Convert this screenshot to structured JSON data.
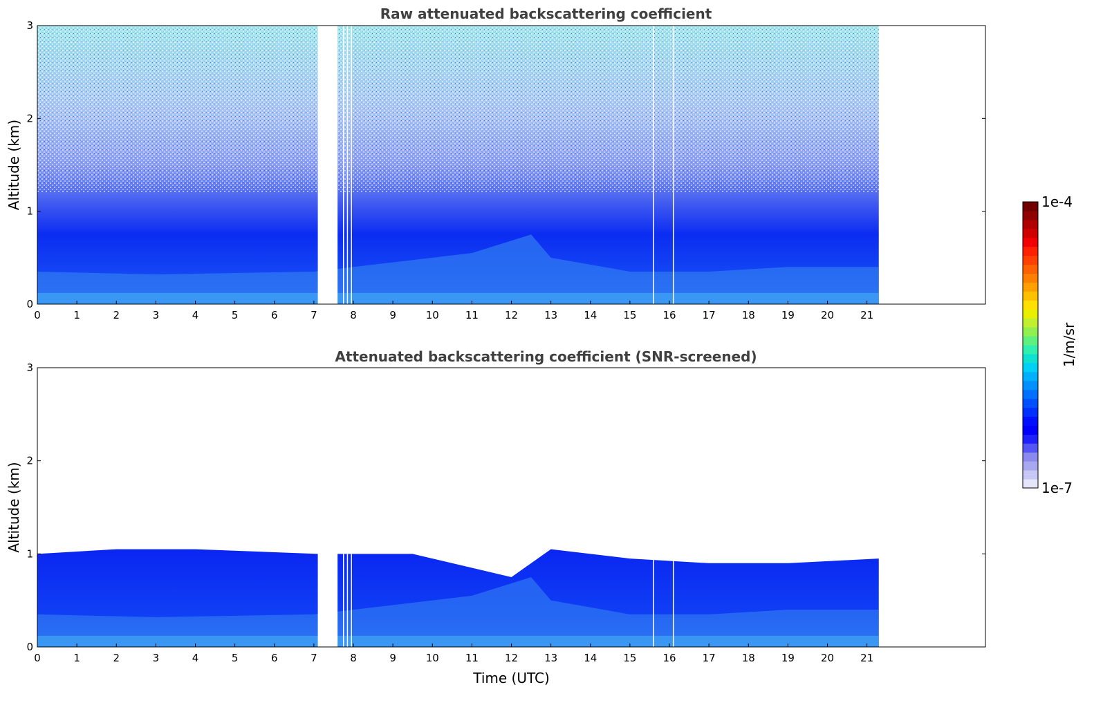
{
  "chart_data": [
    {
      "type": "heatmap",
      "title": "Raw attenuated backscattering coefficient",
      "xlabel": "",
      "ylabel": "Altitude (km)",
      "xlim": [
        0,
        24
      ],
      "ylim": [
        0,
        3
      ],
      "x_ticks": [
        "0",
        "1",
        "2",
        "3",
        "4",
        "5",
        "6",
        "7",
        "8",
        "9",
        "10",
        "11",
        "12",
        "13",
        "14",
        "15",
        "16",
        "17",
        "18",
        "19",
        "20",
        "21"
      ],
      "y_ticks": [
        "0",
        "1",
        "2",
        "3"
      ],
      "data_extent_hours": [
        0,
        21.3
      ],
      "data_gap_hours": [
        7.1,
        7.6
      ],
      "dropout_lines_hours": [
        7.75,
        7.85,
        7.95,
        15.6,
        16.1
      ],
      "boundary_layer_top_km": [
        {
          "t": 0,
          "h": 0.35
        },
        {
          "t": 3,
          "h": 0.32
        },
        {
          "t": 7,
          "h": 0.35
        },
        {
          "t": 11,
          "h": 0.55
        },
        {
          "t": 12.5,
          "h": 0.75
        },
        {
          "t": 13,
          "h": 0.5
        },
        {
          "t": 15,
          "h": 0.35
        },
        {
          "t": 17,
          "h": 0.35
        },
        {
          "t": 19,
          "h": 0.4
        },
        {
          "t": 21.3,
          "h": 0.4
        }
      ]
    },
    {
      "type": "heatmap",
      "title": "Attenuated backscattering coefficient (SNR-screened)",
      "xlabel": "Time (UTC)",
      "ylabel": "Altitude (km)",
      "xlim": [
        0,
        24
      ],
      "ylim": [
        0,
        3
      ],
      "x_ticks": [
        "0",
        "1",
        "2",
        "3",
        "4",
        "5",
        "6",
        "7",
        "8",
        "9",
        "10",
        "11",
        "12",
        "13",
        "14",
        "15",
        "16",
        "17",
        "18",
        "19",
        "20",
        "21"
      ],
      "y_ticks": [
        "0",
        "1",
        "2",
        "3"
      ],
      "data_extent_hours": [
        0,
        21.3
      ],
      "data_gap_hours": [
        7.1,
        7.6
      ],
      "screened_top_km": [
        {
          "t": 0,
          "h": 1.0
        },
        {
          "t": 2,
          "h": 1.05
        },
        {
          "t": 4,
          "h": 1.05
        },
        {
          "t": 7.1,
          "h": 1.0
        },
        {
          "t": 7.6,
          "h": 1.0
        },
        {
          "t": 9.5,
          "h": 1.0
        },
        {
          "t": 11,
          "h": 0.85
        },
        {
          "t": 12,
          "h": 0.75
        },
        {
          "t": 13,
          "h": 1.05
        },
        {
          "t": 15,
          "h": 0.95
        },
        {
          "t": 17,
          "h": 0.9
        },
        {
          "t": 19,
          "h": 0.9
        },
        {
          "t": 21.3,
          "h": 0.95
        }
      ]
    }
  ],
  "colorbar": {
    "label": "1/m/sr",
    "max_label": "1e-4",
    "min_label": "1e-7",
    "colors": [
      "#e6e6fa",
      "#c7c7f5",
      "#a8a8f0",
      "#8a8aee",
      "#5555f6",
      "#2020fa",
      "#0000ff",
      "#0010ff",
      "#0030ff",
      "#0050ff",
      "#0070ff",
      "#0090ff",
      "#00b0ff",
      "#00d0f5",
      "#10e0d0",
      "#30f0b0",
      "#60f080",
      "#90f050",
      "#c0f030",
      "#e8f000",
      "#ffe000",
      "#ffc000",
      "#ffa000",
      "#ff8000",
      "#ff6000",
      "#ff4000",
      "#ff2000",
      "#f00000",
      "#d00000",
      "#b00000",
      "#900000",
      "#700000"
    ]
  }
}
